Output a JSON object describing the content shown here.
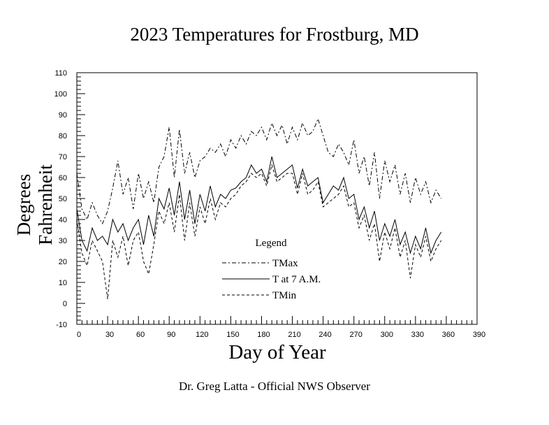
{
  "chart_data": {
    "type": "line",
    "title": "2023 Temperatures for Frostburg, MD",
    "xlabel": "Day of Year",
    "ylabel": "Degrees Fahrenheit",
    "footer": "Dr. Greg Latta - Official NWS Observer",
    "xlim": [
      0,
      390
    ],
    "ylim": [
      -10,
      110
    ],
    "xticks": [
      0,
      30,
      60,
      90,
      120,
      150,
      180,
      210,
      240,
      270,
      300,
      330,
      360,
      390
    ],
    "yticks": [
      -10,
      0,
      10,
      20,
      30,
      40,
      50,
      60,
      70,
      80,
      90,
      100,
      110
    ],
    "grid": false,
    "legend": {
      "title": "Legend",
      "position": "center-bottom inside plot",
      "entries": [
        {
          "label": "TMax",
          "style": "dash-dot"
        },
        {
          "label": "T at 7 A.M.",
          "style": "solid"
        },
        {
          "label": "TMin",
          "style": "dashed"
        }
      ]
    },
    "x": [
      0,
      5,
      10,
      15,
      20,
      25,
      30,
      35,
      40,
      45,
      50,
      55,
      60,
      65,
      70,
      75,
      80,
      85,
      90,
      95,
      100,
      105,
      110,
      115,
      120,
      125,
      130,
      135,
      140,
      145,
      150,
      155,
      160,
      165,
      170,
      175,
      180,
      185,
      190,
      195,
      200,
      205,
      210,
      215,
      220,
      225,
      230,
      235,
      240,
      245,
      250,
      255,
      260,
      265,
      270,
      275,
      280,
      285,
      290,
      295,
      300,
      305,
      310,
      315,
      320,
      325,
      330,
      335,
      340,
      345,
      350,
      355
    ],
    "series": [
      {
        "name": "TMax",
        "values": [
          62,
          45,
          40,
          48,
          42,
          38,
          44,
          55,
          68,
          52,
          60,
          45,
          62,
          50,
          58,
          48,
          65,
          70,
          84,
          60,
          83,
          62,
          72,
          60,
          68,
          70,
          74,
          72,
          76,
          70,
          78,
          74,
          80,
          76,
          82,
          80,
          84,
          78,
          86,
          80,
          85,
          76,
          84,
          78,
          86,
          80,
          82,
          88,
          80,
          72,
          70,
          76,
          72,
          66,
          78,
          62,
          70,
          56,
          72,
          50,
          68,
          58,
          66,
          52,
          62,
          48,
          60,
          52,
          58,
          48,
          54,
          50
        ]
      },
      {
        "name": "T at 7 A.M.",
        "values": [
          45,
          30,
          25,
          36,
          30,
          32,
          28,
          40,
          34,
          38,
          30,
          36,
          40,
          28,
          42,
          32,
          50,
          45,
          55,
          42,
          58,
          40,
          54,
          38,
          52,
          44,
          56,
          46,
          52,
          50,
          54,
          55,
          58,
          60,
          66,
          62,
          64,
          58,
          70,
          60,
          62,
          64,
          66,
          55,
          64,
          56,
          58,
          60,
          48,
          52,
          56,
          54,
          60,
          50,
          52,
          40,
          46,
          36,
          44,
          30,
          38,
          32,
          40,
          28,
          34,
          24,
          32,
          26,
          36,
          24,
          30,
          34
        ]
      },
      {
        "name": "TMin",
        "values": [
          40,
          24,
          18,
          30,
          25,
          20,
          2,
          30,
          22,
          32,
          18,
          30,
          34,
          20,
          14,
          28,
          44,
          38,
          48,
          34,
          52,
          30,
          48,
          32,
          46,
          38,
          50,
          40,
          48,
          46,
          50,
          52,
          56,
          58,
          62,
          60,
          62,
          56,
          66,
          58,
          60,
          62,
          62,
          52,
          62,
          52,
          54,
          58,
          46,
          48,
          50,
          52,
          56,
          46,
          48,
          36,
          42,
          30,
          38,
          20,
          34,
          26,
          36,
          22,
          30,
          12,
          28,
          22,
          32,
          20,
          26,
          30
        ]
      }
    ]
  }
}
